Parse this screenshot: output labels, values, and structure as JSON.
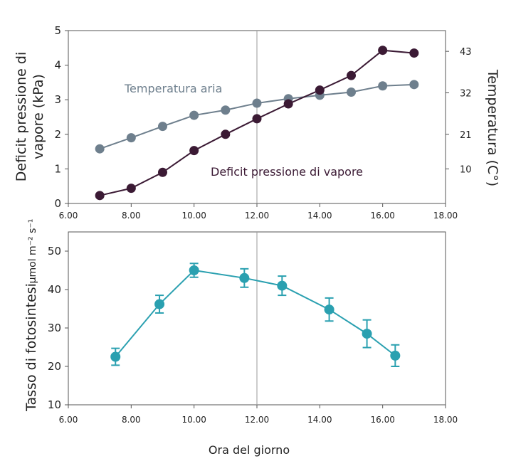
{
  "chart_data": [
    {
      "type": "line",
      "ylabel_left": "Deficit pressione di vapore (kPa)",
      "ylabel_right": "Temperatura (C°)",
      "x_ticks": [
        "6.00",
        "8.00",
        "10.00",
        "12.00",
        "14.00",
        "16.00",
        "18.00"
      ],
      "y_ticks_left": [
        "0",
        "1",
        "2",
        "3",
        "4",
        "5"
      ],
      "y_ticks_right": [
        "10",
        "21",
        "32",
        "43"
      ],
      "xlim": [
        6,
        18
      ],
      "ylim": [
        0,
        5
      ],
      "y2lim_mapping": {
        "10": 1,
        "21": 2,
        "32": 3.2,
        "43": 4.4
      },
      "vline_x": 12,
      "series": [
        {
          "name": "Temperatura aria",
          "color": "#6e7f8d",
          "x": [
            7,
            8,
            9,
            10,
            11,
            12,
            13,
            14,
            15,
            16,
            17
          ],
          "y": [
            1.58,
            1.9,
            2.23,
            2.55,
            2.7,
            2.9,
            3.03,
            3.13,
            3.22,
            3.4,
            3.44
          ]
        },
        {
          "name": "Deficit pressione di vapore",
          "color": "#3b1a34",
          "x": [
            7,
            8,
            9,
            10,
            11,
            12,
            13,
            14,
            15,
            16,
            17
          ],
          "y": [
            0.23,
            0.44,
            0.9,
            1.53,
            2.0,
            2.45,
            2.88,
            3.28,
            3.7,
            4.43,
            4.35
          ]
        }
      ]
    },
    {
      "type": "line",
      "xlabel": "Ora del giorno",
      "ylabel_main": "Tasso di fotosintesi",
      "ylabel_unit": "μmol m⁻² s⁻¹",
      "x_ticks": [
        "6.00",
        "8.00",
        "10.00",
        "12.00",
        "14.00",
        "16.00",
        "18.00"
      ],
      "y_ticks": [
        "10",
        "20",
        "30",
        "40",
        "50"
      ],
      "xlim": [
        6,
        18
      ],
      "ylim": [
        10,
        55
      ],
      "vline_x": 12,
      "series": [
        {
          "name": "",
          "color": "#2aa0b0",
          "x": [
            7.5,
            8.9,
            10.0,
            11.6,
            12.8,
            14.3,
            15.5,
            16.4
          ],
          "y": [
            22.5,
            36.2,
            45.0,
            43.0,
            41.0,
            34.8,
            28.5,
            22.8
          ],
          "err": [
            2.2,
            2.3,
            1.8,
            2.4,
            2.5,
            3.0,
            3.6,
            2.8
          ]
        }
      ]
    }
  ]
}
